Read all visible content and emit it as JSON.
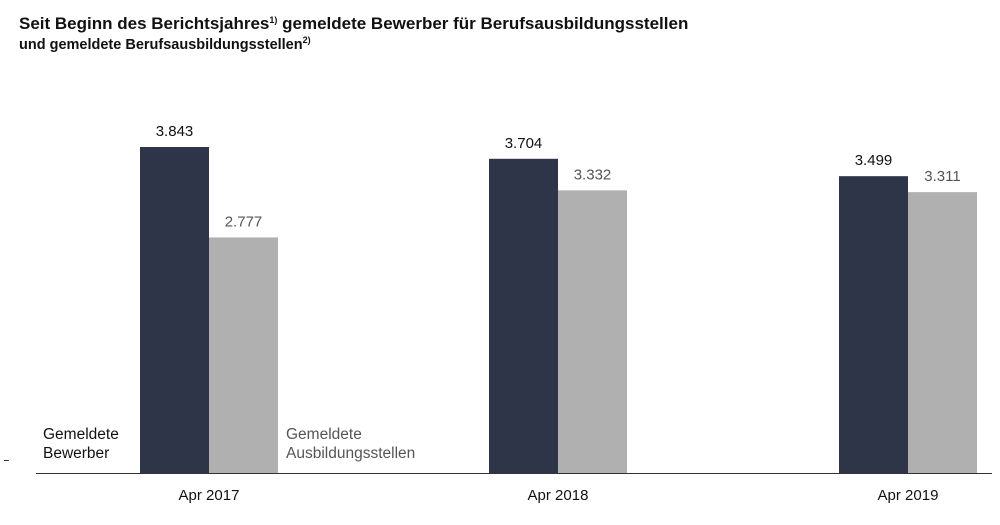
{
  "title": {
    "line1": "Seit Beginn des Berichtsjahres",
    "line1_sup": "1)",
    "line1_rest": " gemeldete Bewerber für Berufsausbildungsstellen",
    "line2": "und gemeldete Berufsausbildungsstellen",
    "line2_sup": "2)"
  },
  "colors": {
    "series1": "#2e3548",
    "series2": "#b0b0b0",
    "label1": "#111111",
    "label2": "#555555",
    "axis": "#333333"
  },
  "chart_data": {
    "type": "bar",
    "categories": [
      "Apr 2017",
      "Apr 2018",
      "Apr 2019"
    ],
    "series": [
      {
        "name": "Gemeldete Bewerber",
        "name_lines": [
          "Gemeldete",
          "Bewerber"
        ],
        "values": [
          3843,
          3704,
          3499
        ],
        "labels": [
          "3.843",
          "3.704",
          "3.499"
        ]
      },
      {
        "name": "Gemeldete Ausbildungsstellen",
        "name_lines": [
          "Gemeldete",
          "Ausbildungsstellen"
        ],
        "values": [
          2777,
          3332,
          3311
        ],
        "labels": [
          "2.777",
          "3.332",
          "3.311"
        ]
      }
    ],
    "ylim": [
      0,
      4300
    ],
    "grid": false,
    "legend": "inside first bars, bottom"
  }
}
